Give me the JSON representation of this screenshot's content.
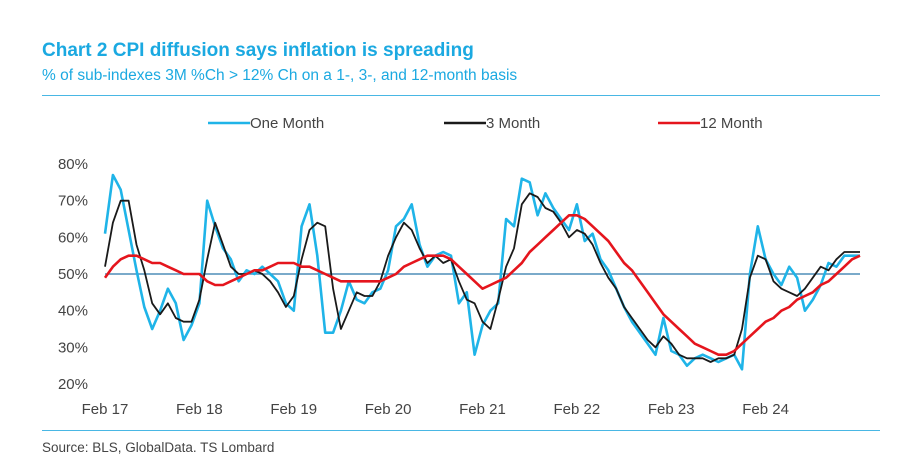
{
  "chart_data": {
    "type": "line",
    "title": "Chart 2 CPI diffusion says inflation is spreading",
    "subtitle": "% of sub-indexes 3M %Ch > 12% Ch on a 1-, 3-, and 12-month basis",
    "source": "Source: BLS, GlobalData. TS Lombard",
    "ylim": [
      20,
      80
    ],
    "y_ticks": [
      "20%",
      "30%",
      "40%",
      "50%",
      "60%",
      "70%",
      "80%"
    ],
    "y_tick_values": [
      20,
      30,
      40,
      50,
      60,
      70,
      80
    ],
    "x_ticks": [
      "Feb 17",
      "Feb 18",
      "Feb 19",
      "Feb 20",
      "Feb 21",
      "Feb 22",
      "Feb 23",
      "Feb 24"
    ],
    "x_tick_values": [
      0,
      12,
      24,
      36,
      48,
      60,
      72,
      84
    ],
    "x_unit": "months since Feb 2017",
    "reference_line": 50,
    "legend_position": "top",
    "series": [
      {
        "name": "One Month",
        "color": "#1fb4e8",
        "x": [
          0,
          1,
          2,
          3,
          4,
          5,
          6,
          7,
          8,
          9,
          10,
          11,
          12,
          13,
          14,
          15,
          16,
          17,
          18,
          19,
          20,
          21,
          22,
          23,
          24,
          25,
          26,
          27,
          28,
          29,
          30,
          31,
          32,
          33,
          34,
          35,
          36,
          37,
          38,
          39,
          40,
          41,
          42,
          43,
          44,
          45,
          46,
          47,
          48,
          49,
          50,
          51,
          52,
          53,
          54,
          55,
          56,
          57,
          58,
          59,
          60,
          61,
          62,
          63,
          64,
          65,
          66,
          67,
          68,
          69,
          70,
          71,
          72,
          73,
          74,
          75,
          76,
          77,
          78,
          79,
          80,
          81,
          82,
          83,
          84,
          85,
          86,
          87,
          88,
          89,
          90,
          91,
          92,
          93,
          94,
          95,
          96
        ],
        "values": [
          61,
          77,
          73,
          62,
          51,
          41,
          35,
          40,
          46,
          42,
          32,
          36,
          42,
          70,
          63,
          57,
          54,
          48,
          51,
          50,
          52,
          50,
          48,
          42,
          40,
          63,
          69,
          55,
          34,
          34,
          40,
          48,
          43,
          42,
          45,
          46,
          51,
          63,
          65,
          69,
          58,
          52,
          55,
          56,
          55,
          42,
          45,
          28,
          36,
          40,
          42,
          65,
          63,
          76,
          75,
          66,
          72,
          68,
          65,
          62,
          69,
          59,
          61,
          54,
          51,
          46,
          41,
          37,
          34,
          31,
          28,
          38,
          29,
          28,
          25,
          27,
          28,
          27,
          26,
          27,
          28,
          24,
          50,
          63,
          54,
          50,
          47,
          52,
          49,
          40,
          43,
          47,
          53,
          52,
          55,
          55,
          55
        ]
      },
      {
        "name": "3 Month",
        "color": "#1a1a1a",
        "x": [
          0,
          1,
          2,
          3,
          4,
          5,
          6,
          7,
          8,
          9,
          10,
          11,
          12,
          13,
          14,
          15,
          16,
          17,
          18,
          19,
          20,
          21,
          22,
          23,
          24,
          25,
          26,
          27,
          28,
          29,
          30,
          31,
          32,
          33,
          34,
          35,
          36,
          37,
          38,
          39,
          40,
          41,
          42,
          43,
          44,
          45,
          46,
          47,
          48,
          49,
          50,
          51,
          52,
          53,
          54,
          55,
          56,
          57,
          58,
          59,
          60,
          61,
          62,
          63,
          64,
          65,
          66,
          67,
          68,
          69,
          70,
          71,
          72,
          73,
          74,
          75,
          76,
          77,
          78,
          79,
          80,
          81,
          82,
          83,
          84,
          85,
          86,
          87,
          88,
          89,
          90,
          91,
          92,
          93,
          94,
          95,
          96
        ],
        "values": [
          52,
          64,
          70,
          70,
          58,
          51,
          42,
          39,
          42,
          38,
          37,
          37,
          43,
          54,
          64,
          58,
          52,
          50,
          50,
          51,
          50,
          48,
          45,
          41,
          44,
          54,
          62,
          64,
          63,
          46,
          35,
          40,
          45,
          44,
          44,
          48,
          55,
          60,
          64,
          62,
          57,
          53,
          55,
          53,
          54,
          48,
          43,
          42,
          37,
          35,
          43,
          52,
          57,
          69,
          72,
          71,
          68,
          67,
          64,
          60,
          62,
          61,
          58,
          53,
          49,
          46,
          41,
          38,
          35,
          32,
          30,
          33,
          31,
          28,
          27,
          27,
          27,
          26,
          27,
          27,
          28,
          35,
          49,
          55,
          54,
          48,
          46,
          45,
          44,
          46,
          49,
          52,
          51,
          54,
          56,
          56,
          56
        ]
      },
      {
        "name": "12 Month",
        "color": "#e5151d",
        "x": [
          0,
          1,
          2,
          3,
          4,
          5,
          6,
          7,
          8,
          9,
          10,
          11,
          12,
          13,
          14,
          15,
          16,
          17,
          18,
          19,
          20,
          21,
          22,
          23,
          24,
          25,
          26,
          27,
          28,
          29,
          30,
          31,
          32,
          33,
          34,
          35,
          36,
          37,
          38,
          39,
          40,
          41,
          42,
          43,
          44,
          45,
          46,
          47,
          48,
          49,
          50,
          51,
          52,
          53,
          54,
          55,
          56,
          57,
          58,
          59,
          60,
          61,
          62,
          63,
          64,
          65,
          66,
          67,
          68,
          69,
          70,
          71,
          72,
          73,
          74,
          75,
          76,
          77,
          78,
          79,
          80,
          81,
          82,
          83,
          84,
          85,
          86,
          87,
          88,
          89,
          90,
          91,
          92,
          93,
          94,
          95,
          96
        ],
        "values": [
          49,
          52,
          54,
          55,
          55,
          54,
          53,
          53,
          52,
          51,
          50,
          50,
          50,
          48,
          47,
          47,
          48,
          49,
          50,
          51,
          51,
          52,
          53,
          53,
          53,
          52,
          52,
          51,
          50,
          49,
          48,
          48,
          48,
          48,
          48,
          48,
          49,
          50,
          52,
          53,
          54,
          55,
          55,
          55,
          54,
          52,
          50,
          48,
          46,
          47,
          48,
          49,
          51,
          53,
          56,
          58,
          60,
          62,
          64,
          66,
          66,
          65,
          63,
          61,
          59,
          56,
          53,
          51,
          48,
          45,
          42,
          39,
          37,
          35,
          33,
          31,
          30,
          29,
          28,
          28,
          29,
          31,
          33,
          35,
          37,
          38,
          40,
          41,
          43,
          44,
          45,
          47,
          48,
          50,
          52,
          54,
          55
        ]
      }
    ]
  }
}
